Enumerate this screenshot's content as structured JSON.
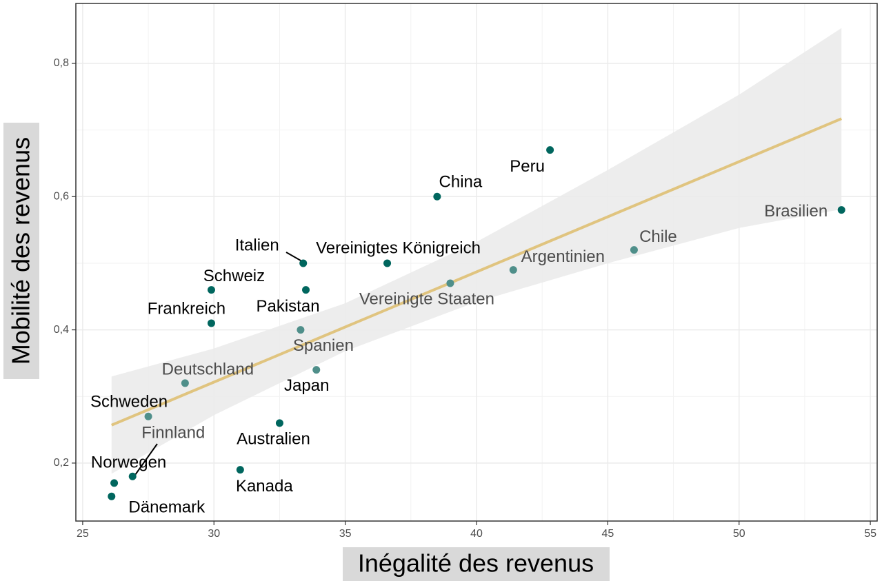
{
  "chart_data": {
    "type": "scatter",
    "x_label": "Inégalité des revenus",
    "y_label": "Mobilité des revenus",
    "xlim": [
      24.74,
      55.26
    ],
    "ylim": [
      0.113,
      0.89
    ],
    "xticks": [
      25,
      30,
      35,
      40,
      45,
      50,
      55
    ],
    "yticks": [
      {
        "value": 0.2,
        "label": "0,2"
      },
      {
        "value": 0.4,
        "label": "0,4"
      },
      {
        "value": 0.6,
        "label": "0,6"
      },
      {
        "value": 0.8,
        "label": "0,8"
      }
    ],
    "grid": true,
    "points": {
      "labels": [
        "Peru",
        "China",
        "Brasilien",
        "Chile",
        "Argentinien",
        "Vereinigte Staaten",
        "Vereinigtes Königreich",
        "Italien",
        "Schweiz",
        "Pakistan",
        "Frankreich",
        "Spanien",
        "Japan",
        "Deutschland",
        "Schweden",
        "Australien",
        "Finnland",
        "Norwegen",
        "Dänemark",
        "Kanada"
      ],
      "x": [
        42.8,
        38.5,
        53.9,
        46.0,
        41.4,
        39.0,
        36.6,
        33.4,
        29.9,
        33.5,
        29.9,
        33.3,
        33.9,
        28.9,
        27.5,
        32.5,
        26.9,
        26.2,
        26.1,
        31.0
      ],
      "y": [
        0.67,
        0.6,
        0.58,
        0.52,
        0.49,
        0.47,
        0.5,
        0.5,
        0.46,
        0.46,
        0.41,
        0.4,
        0.34,
        0.32,
        0.27,
        0.26,
        0.18,
        0.17,
        0.15,
        0.19
      ],
      "colors": [
        "#00665e",
        "#00665e",
        "#00665e",
        "#4f8f8a",
        "#4f8f8a",
        "#4f8f8a",
        "#00665e",
        "#00665e",
        "#00665e",
        "#00665e",
        "#00665e",
        "#4f8f8a",
        "#4f8f8a",
        "#4f8f8a",
        "#4f8f8a",
        "#00665e",
        "#00665e",
        "#00665e",
        "#00665e",
        "#00665e"
      ],
      "label_colors": [
        "#000000",
        "#000000",
        "#4d4d4d",
        "#4d4d4d",
        "#4d4d4d",
        "#4d4d4d",
        "#000000",
        "#000000",
        "#000000",
        "#000000",
        "#000000",
        "#4d4d4d",
        "#000000",
        "#4d4d4d",
        "#000000",
        "#000000",
        "#4d4d4d",
        "#000000",
        "#000000",
        "#000000"
      ]
    },
    "fit": {
      "color": "#e0c47f",
      "x": [
        26.1,
        53.9
      ],
      "y": [
        0.257,
        0.717
      ]
    },
    "band": {
      "color": "#ebebeb",
      "x": [
        26.1,
        30,
        35,
        40,
        45,
        50,
        53.9
      ],
      "upper": [
        0.33,
        0.372,
        0.44,
        0.532,
        0.64,
        0.753,
        0.853
      ],
      "lower": [
        0.184,
        0.272,
        0.368,
        0.442,
        0.5,
        0.553,
        0.581
      ]
    }
  }
}
